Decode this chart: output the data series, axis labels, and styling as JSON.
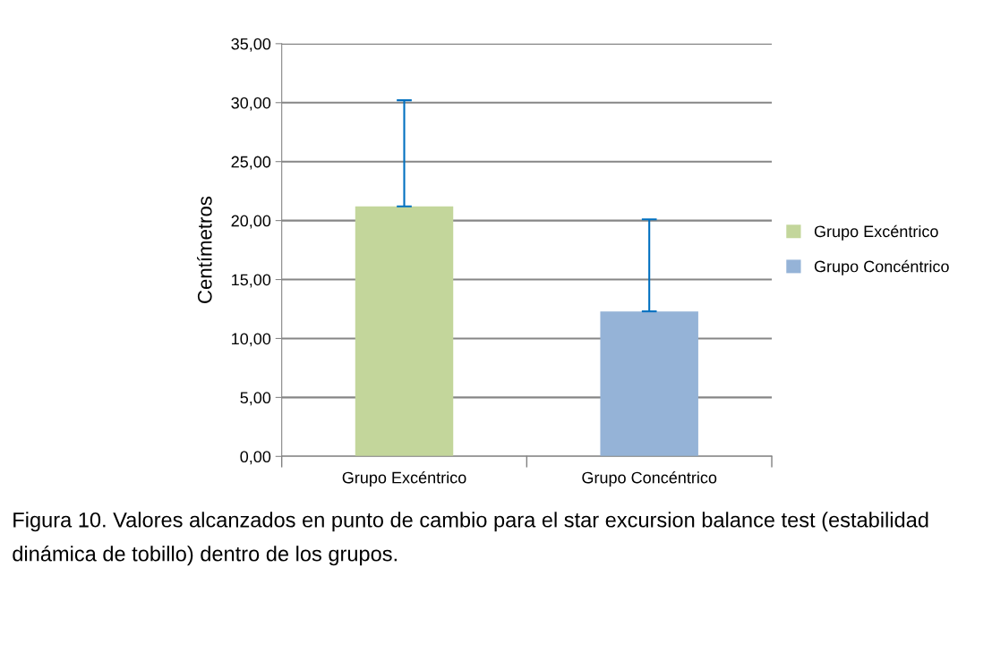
{
  "chart_data": {
    "type": "bar",
    "ylabel": "Centímetros",
    "categories": [
      "Grupo Excéntrico",
      "Grupo Concéntrico"
    ],
    "series": [
      {
        "name": "Grupo Excéntrico",
        "color": "#c3d69b",
        "values": [
          21.2,
          null
        ],
        "errors": [
          [
            21.2,
            30.2
          ],
          null
        ]
      },
      {
        "name": "Grupo Concéntrico",
        "color": "#95b3d7",
        "values": [
          null,
          12.3
        ],
        "errors": [
          null,
          [
            12.3,
            20.1
          ]
        ]
      }
    ],
    "ylim": [
      0,
      35
    ],
    "yticks": [
      {
        "value": 0,
        "label": "0,00"
      },
      {
        "value": 5,
        "label": "5,00"
      },
      {
        "value": 10,
        "label": "10,00"
      },
      {
        "value": 15,
        "label": "15,00"
      },
      {
        "value": 20,
        "label": "20,00"
      },
      {
        "value": 25,
        "label": "25,00"
      },
      {
        "value": 30,
        "label": "30,00"
      },
      {
        "value": 35,
        "label": "35,00"
      }
    ],
    "grid": "y",
    "legend": "right",
    "annotations": [
      "Figura 10. Valores alcanzados en punto de cambio para el star excursion balance test (estabilidad dinámica de tobillo) dentro de los grupos."
    ]
  }
}
